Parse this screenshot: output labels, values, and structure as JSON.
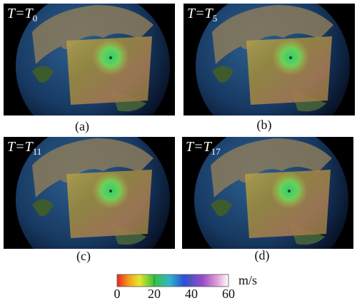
{
  "panels": [
    {
      "label": "T=T",
      "subscript": "0",
      "caption": "(a)"
    },
    {
      "label": "T=T",
      "subscript": "5",
      "caption": "(b)"
    },
    {
      "label": "T=T",
      "subscript": "11",
      "caption": "(c)"
    },
    {
      "label": "T=T",
      "subscript": "17",
      "caption": "(d)"
    }
  ],
  "colorbar": {
    "unit": "m/s",
    "lim": [
      0,
      60
    ],
    "ticks": [
      0,
      20,
      40,
      60
    ]
  }
}
